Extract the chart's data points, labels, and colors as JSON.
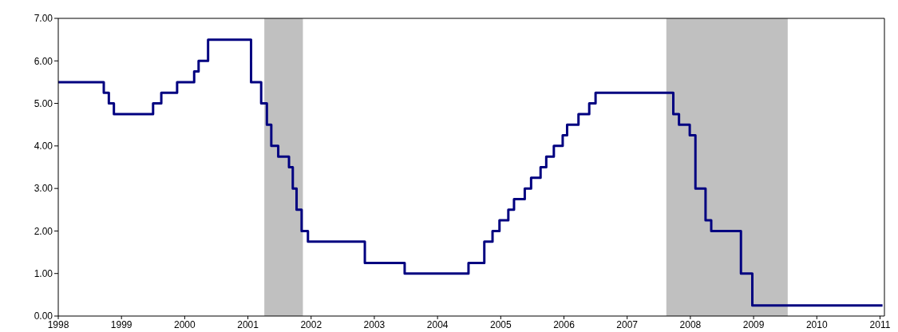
{
  "chart_data": {
    "type": "step",
    "x": [
      1998.0,
      1998.72,
      1998.8,
      1998.88,
      1999.5,
      1999.63,
      1999.88,
      2000.15,
      2000.22,
      2000.37,
      2001.05,
      2001.21,
      2001.3,
      2001.37,
      2001.48,
      2001.65,
      2001.71,
      2001.77,
      2001.85,
      2001.95,
      2002.85,
      2003.48,
      2004.49,
      2004.74,
      2004.87,
      2004.98,
      2005.12,
      2005.21,
      2005.38,
      2005.48,
      2005.63,
      2005.72,
      2005.84,
      2005.98,
      2006.05,
      2006.23,
      2006.4,
      2006.5,
      2007.73,
      2007.82,
      2007.99,
      2008.08,
      2008.24,
      2008.33,
      2008.8,
      2008.98,
      2011.04
    ],
    "series": [
      {
        "color": "#000080",
        "values": [
          5.5,
          5.25,
          5.0,
          4.75,
          5.0,
          5.25,
          5.5,
          5.75,
          6.0,
          6.5,
          5.5,
          5.0,
          4.5,
          4.0,
          3.75,
          3.5,
          3.0,
          2.5,
          2.0,
          1.75,
          1.25,
          1.0,
          1.25,
          1.75,
          2.0,
          2.25,
          2.5,
          2.75,
          3.0,
          3.25,
          3.5,
          3.75,
          4.0,
          4.25,
          4.5,
          4.75,
          5.0,
          5.25,
          4.75,
          4.5,
          4.25,
          3.0,
          2.25,
          2.0,
          1.0,
          0.25,
          0.25
        ]
      }
    ],
    "xlim": [
      1998,
      2011.07
    ],
    "xticks": [
      1998,
      1999,
      2000,
      2001,
      2002,
      2003,
      2004,
      2005,
      2006,
      2007,
      2008,
      2009,
      2010,
      2011
    ],
    "ylim": [
      0,
      7
    ],
    "yticks": [
      {
        "value": 0,
        "label": "0.00"
      },
      {
        "value": 1,
        "label": "1.00"
      },
      {
        "value": 2,
        "label": "2.00"
      },
      {
        "value": 3,
        "label": "3.00"
      },
      {
        "value": 4,
        "label": "4.00"
      },
      {
        "value": 5,
        "label": "5.00"
      },
      {
        "value": 6,
        "label": "6.00"
      },
      {
        "value": 7,
        "label": "7.00"
      }
    ],
    "bands": [
      {
        "axis": "x",
        "from": 2001.26,
        "to": 2001.87,
        "color": "#c0c0c0"
      },
      {
        "axis": "x",
        "from": 2007.62,
        "to": 2009.54,
        "color": "#c0c0c0"
      }
    ],
    "grid": false
  }
}
